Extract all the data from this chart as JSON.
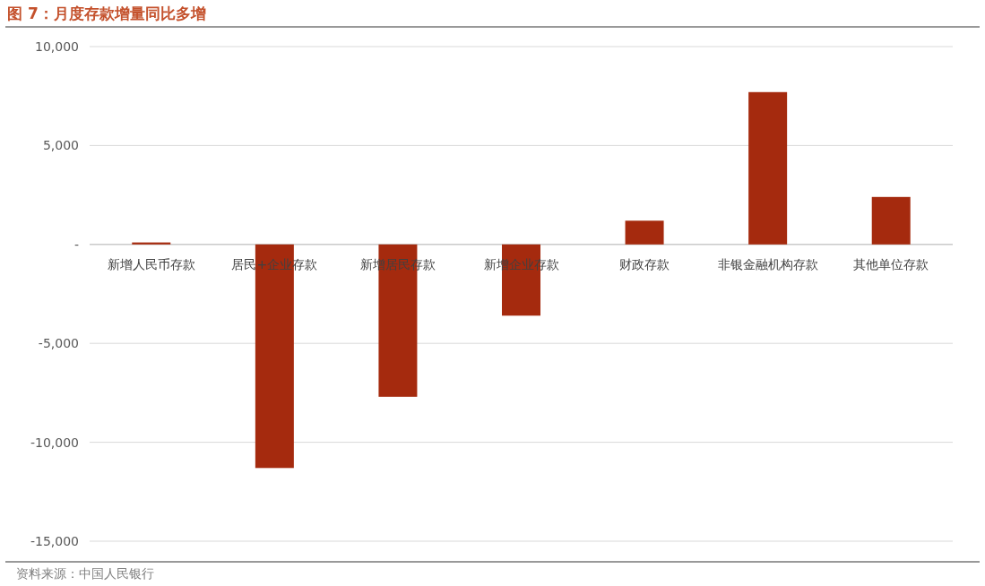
{
  "chart_data": {
    "type": "bar",
    "title": "图 7：月度存款增量同比多增",
    "categories": [
      "新增人民币存款",
      "居民+企业存款",
      "新增居民存款",
      "新增企业存款",
      "财政存款",
      "非银金融机构存款",
      "其他单位存款"
    ],
    "values": [
      100,
      -11300,
      -7700,
      -3600,
      1200,
      7700,
      2400
    ],
    "color": "#a52a0e",
    "ylim": [
      -15000,
      10000
    ],
    "yticks": [
      {
        "value": -15000,
        "label": "-15,000"
      },
      {
        "value": -10000,
        "label": "-10,000"
      },
      {
        "value": -5000,
        "label": "-5,000"
      },
      {
        "value": 0,
        "label": "-"
      },
      {
        "value": 5000,
        "label": "5,000"
      },
      {
        "value": 10000,
        "label": "10,000"
      }
    ],
    "grid": "y",
    "annotations": [
      "资料来源：中国人民银行"
    ]
  }
}
